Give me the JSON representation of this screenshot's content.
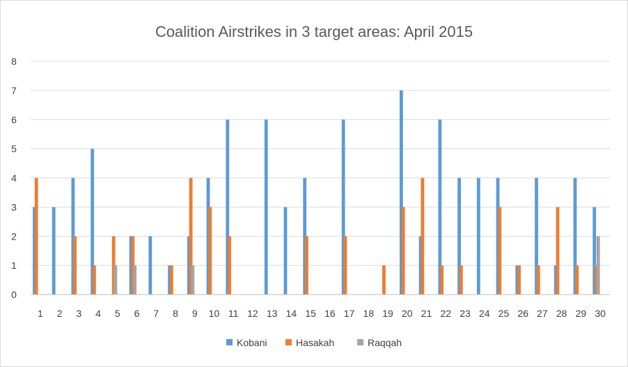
{
  "chart_data": {
    "type": "bar",
    "title": "Coalition Airstrikes in 3 target areas: April 2015",
    "xlabel": "",
    "ylabel": "",
    "ylim": [
      0,
      8
    ],
    "yticks": [
      0,
      1,
      2,
      3,
      4,
      5,
      6,
      7,
      8
    ],
    "grid": true,
    "legend_position": "bottom",
    "categories": [
      "1",
      "2",
      "3",
      "4",
      "5",
      "6",
      "7",
      "8",
      "9",
      "10",
      "11",
      "12",
      "13",
      "14",
      "15",
      "16",
      "17",
      "18",
      "19",
      "20",
      "21",
      "22",
      "23",
      "24",
      "25",
      "26",
      "27",
      "28",
      "29",
      "30"
    ],
    "series": [
      {
        "name": "Kobani",
        "color": "#5b9bd5",
        "values": [
          3,
          3,
          4,
          5,
          0,
          2,
          2,
          1,
          2,
          4,
          6,
          0,
          6,
          3,
          4,
          0,
          6,
          0,
          0,
          7,
          2,
          6,
          4,
          4,
          4,
          1,
          4,
          1,
          4,
          3
        ]
      },
      {
        "name": "Hasakah",
        "color": "#ed7d31",
        "values": [
          4,
          0,
          2,
          1,
          2,
          2,
          0,
          1,
          4,
          3,
          2,
          0,
          0,
          0,
          2,
          0,
          2,
          0,
          1,
          3,
          4,
          1,
          1,
          0,
          3,
          1,
          1,
          3,
          1,
          1
        ]
      },
      {
        "name": "Raqqah",
        "color": "#a5a5a5",
        "values": [
          0,
          0,
          0,
          0,
          1,
          1,
          0,
          0,
          1,
          0,
          0,
          0,
          0,
          0,
          0,
          0,
          0,
          0,
          0,
          0,
          0,
          0,
          0,
          0,
          0,
          0,
          0,
          0,
          0,
          2
        ]
      }
    ]
  }
}
